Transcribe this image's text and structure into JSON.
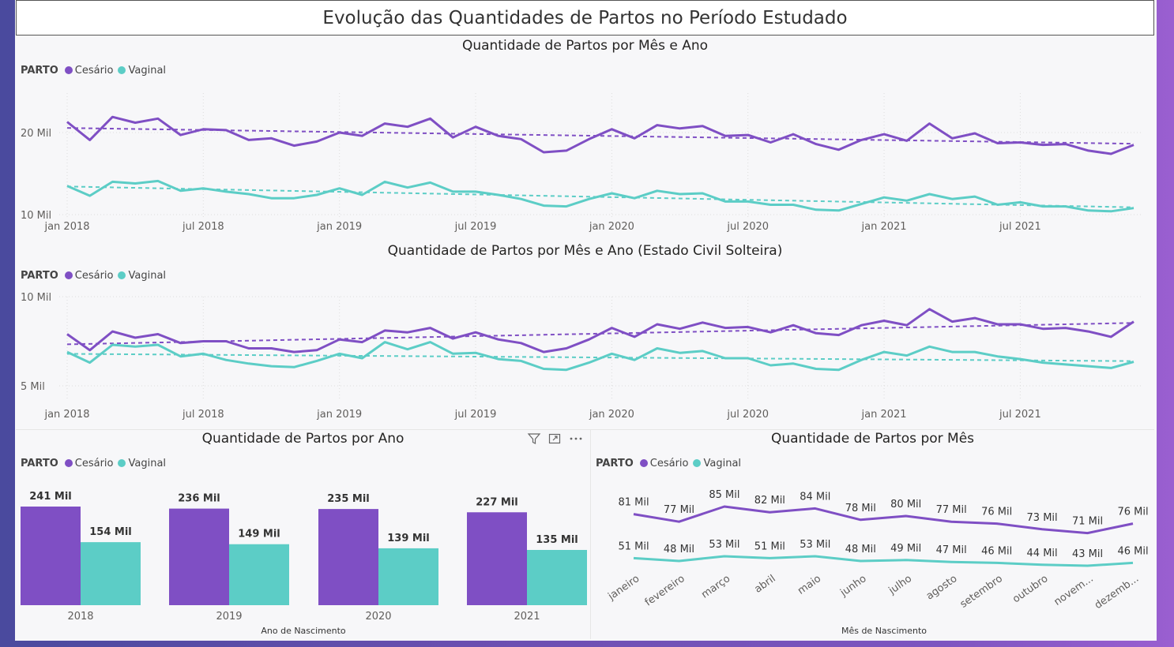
{
  "page_title": "Evolução das Quantidades de Partos no Período Estudado",
  "legend": {
    "field": "PARTO",
    "cesario": "Cesário",
    "vaginal": "Vaginal"
  },
  "colors": {
    "cesario": "#7f4fc4",
    "vaginal": "#5ccdc6"
  },
  "visual_icons": [
    "filter-icon",
    "focus-mode-icon",
    "more-options-icon"
  ],
  "chart_data": [
    {
      "type": "line",
      "title": "Quantidade de Partos por Mês e Ano",
      "x_ticks": [
        "jan 2018",
        "jul 2018",
        "jan 2019",
        "jul 2019",
        "jan 2020",
        "jul 2020",
        "jan 2021",
        "jul 2021"
      ],
      "y_ticks": [
        "10 Mil",
        "20 Mil"
      ],
      "ylim": [
        10000,
        22000
      ],
      "trend_lines": true,
      "series": [
        {
          "name": "Cesário",
          "values": [
            21300,
            19100,
            21900,
            21200,
            21700,
            19700,
            20400,
            20300,
            19100,
            19300,
            18400,
            18900,
            20000,
            19600,
            21100,
            20700,
            21700,
            19400,
            20700,
            19600,
            19200,
            17600,
            17800,
            19200,
            20400,
            19300,
            20900,
            20500,
            20800,
            19600,
            19700,
            18800,
            19800,
            18600,
            17900,
            19100,
            19800,
            19000,
            21100,
            19300,
            19900,
            18700,
            18800,
            18500,
            18600,
            17800,
            17400,
            18500
          ]
        },
        {
          "name": "Vaginal",
          "values": [
            13500,
            12300,
            14000,
            13800,
            14100,
            12900,
            13200,
            12800,
            12500,
            12000,
            12000,
            12400,
            13200,
            12400,
            14000,
            13300,
            13900,
            12800,
            12800,
            12400,
            11900,
            11100,
            11000,
            11900,
            12600,
            12000,
            12900,
            12500,
            12600,
            11600,
            11600,
            11200,
            11200,
            10600,
            10500,
            11300,
            12100,
            11700,
            12500,
            11900,
            12200,
            11200,
            11500,
            11000,
            11000,
            10500,
            10400,
            10800
          ]
        }
      ]
    },
    {
      "type": "line",
      "title": "Quantidade de Partos por Mês e Ano (Estado Civil Solteira)",
      "x_ticks": [
        "jan 2018",
        "jul 2018",
        "jan 2019",
        "jul 2019",
        "jan 2020",
        "jul 2020",
        "jan 2021",
        "jul 2021"
      ],
      "y_ticks": [
        "5 Mil",
        "10 Mil"
      ],
      "ylim": [
        5000,
        10000
      ],
      "trend_lines": true,
      "series": [
        {
          "name": "Cesário",
          "values": [
            7900,
            7000,
            8050,
            7700,
            7900,
            7400,
            7500,
            7500,
            7100,
            7100,
            6900,
            7000,
            7600,
            7450,
            8100,
            8000,
            8250,
            7650,
            8000,
            7600,
            7400,
            6900,
            7100,
            7600,
            8250,
            7750,
            8450,
            8200,
            8550,
            8250,
            8300,
            8000,
            8400,
            7950,
            7850,
            8400,
            8650,
            8400,
            9300,
            8600,
            8800,
            8450,
            8450,
            8200,
            8250,
            8050,
            7750,
            8600
          ]
        },
        {
          "name": "Vaginal",
          "values": [
            6900,
            6300,
            7300,
            7200,
            7300,
            6650,
            6800,
            6450,
            6250,
            6100,
            6050,
            6400,
            6800,
            6550,
            7450,
            7050,
            7450,
            6800,
            6850,
            6500,
            6400,
            5950,
            5900,
            6300,
            6800,
            6450,
            7100,
            6850,
            6950,
            6550,
            6550,
            6150,
            6250,
            5950,
            5900,
            6450,
            6900,
            6700,
            7200,
            6900,
            6900,
            6650,
            6500,
            6300,
            6200,
            6100,
            6000,
            6350
          ]
        }
      ]
    },
    {
      "type": "bar",
      "title": "Quantidade de Partos por Ano",
      "xlabel": "Ano de Nascimento",
      "categories": [
        "2018",
        "2019",
        "2020",
        "2021"
      ],
      "series": [
        {
          "name": "Cesário",
          "values": [
            241,
            236,
            235,
            227
          ],
          "labels": [
            "241 Mil",
            "236 Mil",
            "235 Mil",
            "227 Mil"
          ]
        },
        {
          "name": "Vaginal",
          "values": [
            154,
            149,
            139,
            135
          ],
          "labels": [
            "154 Mil",
            "149 Mil",
            "139 Mil",
            "135 Mil"
          ]
        }
      ]
    },
    {
      "type": "line",
      "title": "Quantidade de Partos por Mês",
      "xlabel": "Mês de Nascimento",
      "categories": [
        "janeiro",
        "fevereiro",
        "março",
        "abril",
        "maio",
        "junho",
        "julho",
        "agosto",
        "setembro",
        "outubro",
        "novem...",
        "dezemb..."
      ],
      "series": [
        {
          "name": "Cesário",
          "values": [
            81,
            77,
            85,
            82,
            84,
            78,
            80,
            77,
            76,
            73,
            71,
            76
          ],
          "labels": [
            "81 Mil",
            "77 Mil",
            "85 Mil",
            "82 Mil",
            "84 Mil",
            "78 Mil",
            "80 Mil",
            "77 Mil",
            "76 Mil",
            "73 Mil",
            "71 Mil",
            "76 Mil"
          ]
        },
        {
          "name": "Vaginal",
          "values": [
            51,
            48,
            53,
            51,
            53,
            48,
            49,
            47,
            46,
            44,
            43,
            46
          ],
          "labels": [
            "51 Mil",
            "48 Mil",
            "53 Mil",
            "51 Mil",
            "53 Mil",
            "48 Mil",
            "49 Mil",
            "47 Mil",
            "46 Mil",
            "44 Mil",
            "43 Mil",
            "46 Mil"
          ]
        }
      ]
    }
  ]
}
